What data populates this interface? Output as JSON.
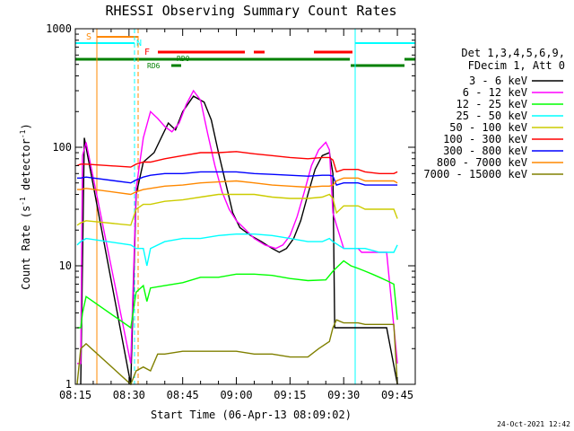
{
  "chart_data": {
    "type": "line",
    "title": "RHESSI Observing Summary Count Rates",
    "xlabel": "Start Time (06-Apr-13 08:09:02)",
    "ylabel_main": "Count Rate (s",
    "ylabel_sup1": "-1",
    "ylabel_mid": " detector",
    "ylabel_sup2": "-1",
    "ylabel_end": ")",
    "ylog": true,
    "ylim": [
      1,
      1000
    ],
    "xlim_min": [
      495,
      590
    ],
    "x_ticks": [
      {
        "min": 495,
        "label": "08:15"
      },
      {
        "min": 510,
        "label": "08:30"
      },
      {
        "min": 525,
        "label": "08:45"
      },
      {
        "min": 540,
        "label": "09:00"
      },
      {
        "min": 555,
        "label": "09:15"
      },
      {
        "min": 570,
        "label": "09:30"
      },
      {
        "min": 585,
        "label": "09:45"
      }
    ],
    "y_ticks": [
      {
        "value": 1,
        "label": "1"
      },
      {
        "value": 10,
        "label": "10"
      },
      {
        "value": 100,
        "label": "100"
      },
      {
        "value": 1000,
        "label": "1000"
      }
    ],
    "legend_header": [
      "Det 1,3,4,5,6,9,",
      "FDecim 1, Att 0"
    ],
    "series": [
      {
        "name": "3 - 6 keV",
        "color": "#000000",
        "points": [
          [
            496.5,
            1
          ],
          [
            497.5,
            120
          ],
          [
            510.5,
            1
          ],
          [
            512,
            40
          ],
          [
            514,
            75
          ],
          [
            517,
            90
          ],
          [
            519,
            120
          ],
          [
            521,
            160
          ],
          [
            523,
            140
          ],
          [
            525,
            200
          ],
          [
            528,
            270
          ],
          [
            531,
            240
          ],
          [
            533,
            170
          ],
          [
            535,
            90
          ],
          [
            537,
            50
          ],
          [
            539,
            28
          ],
          [
            541,
            21
          ],
          [
            544,
            18
          ],
          [
            547,
            16
          ],
          [
            550,
            14
          ],
          [
            552,
            13
          ],
          [
            554,
            14
          ],
          [
            556,
            17
          ],
          [
            558,
            24
          ],
          [
            560,
            40
          ],
          [
            562,
            65
          ],
          [
            564,
            85
          ],
          [
            566,
            90
          ],
          [
            567,
            60
          ],
          [
            567.5,
            3
          ],
          [
            574,
            3
          ],
          [
            575,
            3
          ],
          [
            580,
            3
          ],
          [
            582,
            3
          ],
          [
            585,
            1
          ]
        ]
      },
      {
        "name": "6 - 12 keV",
        "color": "#ff00ff",
        "points": [
          [
            495.5,
            1.5
          ],
          [
            496.5,
            1.5
          ],
          [
            497,
            85
          ],
          [
            498,
            110
          ],
          [
            510.5,
            1.5
          ],
          [
            512,
            45
          ],
          [
            514,
            120
          ],
          [
            516,
            200
          ],
          [
            518,
            175
          ],
          [
            520,
            150
          ],
          [
            522,
            135
          ],
          [
            524,
            160
          ],
          [
            526,
            230
          ],
          [
            528,
            300
          ],
          [
            530,
            250
          ],
          [
            532,
            130
          ],
          [
            534,
            70
          ],
          [
            536,
            42
          ],
          [
            538,
            30
          ],
          [
            540,
            24
          ],
          [
            542,
            21
          ],
          [
            545,
            17
          ],
          [
            548,
            15
          ],
          [
            551,
            14
          ],
          [
            553,
            15
          ],
          [
            555,
            18
          ],
          [
            557,
            26
          ],
          [
            559,
            42
          ],
          [
            561,
            70
          ],
          [
            563,
            95
          ],
          [
            565,
            110
          ],
          [
            566,
            95
          ],
          [
            567,
            28
          ],
          [
            568,
            22
          ],
          [
            570,
            14
          ],
          [
            572,
            14
          ],
          [
            574,
            14
          ],
          [
            575,
            13
          ],
          [
            580,
            13
          ],
          [
            582,
            13
          ],
          [
            585,
            1.5
          ]
        ]
      },
      {
        "name": "12 - 25 keV",
        "color": "#00ff00",
        "points": [
          [
            495.5,
            3
          ],
          [
            496.5,
            3
          ],
          [
            497,
            4
          ],
          [
            498,
            5.5
          ],
          [
            510.5,
            3
          ],
          [
            512,
            6
          ],
          [
            514,
            6.8
          ],
          [
            515,
            5
          ],
          [
            516,
            6.5
          ],
          [
            520,
            6.8
          ],
          [
            525,
            7.2
          ],
          [
            530,
            8
          ],
          [
            535,
            8
          ],
          [
            540,
            8.5
          ],
          [
            545,
            8.5
          ],
          [
            550,
            8.3
          ],
          [
            555,
            7.8
          ],
          [
            560,
            7.5
          ],
          [
            565,
            7.6
          ],
          [
            567,
            9
          ],
          [
            570,
            11
          ],
          [
            572,
            10
          ],
          [
            574,
            9.5
          ],
          [
            576,
            9
          ],
          [
            578,
            8.5
          ],
          [
            580,
            8
          ],
          [
            582,
            7.5
          ],
          [
            584,
            7
          ],
          [
            585,
            3.5
          ]
        ]
      },
      {
        "name": "25 - 50 keV",
        "color": "#00ffff",
        "points": [
          [
            495.5,
            15
          ],
          [
            496.5,
            16
          ],
          [
            498,
            17
          ],
          [
            510.5,
            15
          ],
          [
            512,
            14
          ],
          [
            514,
            14
          ],
          [
            515,
            10
          ],
          [
            516,
            14
          ],
          [
            520,
            16
          ],
          [
            525,
            17
          ],
          [
            530,
            17
          ],
          [
            535,
            18
          ],
          [
            540,
            18.5
          ],
          [
            545,
            18.5
          ],
          [
            550,
            18
          ],
          [
            555,
            17
          ],
          [
            560,
            16
          ],
          [
            564,
            16
          ],
          [
            566,
            17
          ],
          [
            567,
            16
          ],
          [
            570,
            14
          ],
          [
            574,
            14
          ],
          [
            576,
            14
          ],
          [
            580,
            13
          ],
          [
            584,
            13
          ],
          [
            585,
            15
          ]
        ]
      },
      {
        "name": "50 - 100 keV",
        "color": "#cccc00",
        "points": [
          [
            495.5,
            22
          ],
          [
            496.5,
            23
          ],
          [
            498,
            24
          ],
          [
            510.5,
            22
          ],
          [
            512,
            30
          ],
          [
            514,
            33
          ],
          [
            516,
            33
          ],
          [
            520,
            35
          ],
          [
            525,
            36
          ],
          [
            530,
            38
          ],
          [
            535,
            40
          ],
          [
            540,
            40
          ],
          [
            545,
            40
          ],
          [
            550,
            38
          ],
          [
            555,
            37
          ],
          [
            560,
            37
          ],
          [
            564,
            38
          ],
          [
            566,
            40
          ],
          [
            567,
            37
          ],
          [
            568,
            28
          ],
          [
            570,
            32
          ],
          [
            574,
            32
          ],
          [
            576,
            30
          ],
          [
            580,
            30
          ],
          [
            584,
            30
          ],
          [
            585,
            25
          ]
        ]
      },
      {
        "name": "100 - 300 keV",
        "color": "#ff0000",
        "points": [
          [
            495.5,
            70
          ],
          [
            496.5,
            72
          ],
          [
            498,
            72
          ],
          [
            510.5,
            68
          ],
          [
            512,
            72
          ],
          [
            514,
            75
          ],
          [
            516,
            75
          ],
          [
            520,
            80
          ],
          [
            525,
            85
          ],
          [
            530,
            90
          ],
          [
            535,
            90
          ],
          [
            540,
            92
          ],
          [
            545,
            88
          ],
          [
            550,
            85
          ],
          [
            555,
            82
          ],
          [
            560,
            80
          ],
          [
            564,
            82
          ],
          [
            566,
            82
          ],
          [
            567,
            78
          ],
          [
            568,
            62
          ],
          [
            570,
            65
          ],
          [
            574,
            65
          ],
          [
            576,
            62
          ],
          [
            580,
            60
          ],
          [
            584,
            60
          ],
          [
            585,
            62
          ]
        ]
      },
      {
        "name": "300 - 800 keV",
        "color": "#0000ff",
        "points": [
          [
            495.5,
            55
          ],
          [
            496.5,
            55
          ],
          [
            498,
            56
          ],
          [
            510.5,
            50
          ],
          [
            512,
            53
          ],
          [
            514,
            56
          ],
          [
            516,
            58
          ],
          [
            520,
            60
          ],
          [
            525,
            60
          ],
          [
            530,
            62
          ],
          [
            535,
            62
          ],
          [
            540,
            62
          ],
          [
            545,
            60
          ],
          [
            550,
            59
          ],
          [
            555,
            58
          ],
          [
            560,
            57
          ],
          [
            564,
            58
          ],
          [
            566,
            58
          ],
          [
            567,
            57
          ],
          [
            568,
            48
          ],
          [
            570,
            50
          ],
          [
            574,
            50
          ],
          [
            576,
            48
          ],
          [
            580,
            48
          ],
          [
            584,
            48
          ],
          [
            585,
            48
          ]
        ]
      },
      {
        "name": "800 - 7000 keV",
        "color": "#ff8800",
        "points": [
          [
            495.5,
            44
          ],
          [
            496.5,
            44
          ],
          [
            498,
            45
          ],
          [
            510.5,
            40
          ],
          [
            512,
            42
          ],
          [
            514,
            44
          ],
          [
            516,
            45
          ],
          [
            520,
            47
          ],
          [
            525,
            48
          ],
          [
            530,
            50
          ],
          [
            535,
            51
          ],
          [
            540,
            52
          ],
          [
            545,
            50
          ],
          [
            550,
            48
          ],
          [
            555,
            47
          ],
          [
            560,
            46
          ],
          [
            564,
            47
          ],
          [
            566,
            47
          ],
          [
            567,
            48
          ],
          [
            568,
            52
          ],
          [
            570,
            55
          ],
          [
            574,
            55
          ],
          [
            576,
            52
          ],
          [
            580,
            52
          ],
          [
            584,
            52
          ],
          [
            585,
            50
          ]
        ]
      },
      {
        "name": "7000 - 15000 keV",
        "color": "#808000",
        "points": [
          [
            495.5,
            1
          ],
          [
            496.5,
            2
          ],
          [
            498,
            2.2
          ],
          [
            510.5,
            1
          ],
          [
            512,
            1.3
          ],
          [
            514,
            1.4
          ],
          [
            516,
            1.3
          ],
          [
            518,
            1.8
          ],
          [
            520,
            1.8
          ],
          [
            525,
            1.9
          ],
          [
            530,
            1.9
          ],
          [
            535,
            1.9
          ],
          [
            540,
            1.9
          ],
          [
            545,
            1.8
          ],
          [
            550,
            1.8
          ],
          [
            555,
            1.7
          ],
          [
            560,
            1.7
          ],
          [
            563,
            2
          ],
          [
            566,
            2.3
          ],
          [
            567,
            3
          ],
          [
            568,
            3.5
          ],
          [
            570,
            3.3
          ],
          [
            574,
            3.3
          ],
          [
            576,
            3.2
          ],
          [
            580,
            3.2
          ],
          [
            584,
            3.2
          ],
          [
            585,
            1
          ]
        ]
      }
    ],
    "flag_labels": {
      "S": "S",
      "N": "N",
      "F": "F",
      "RD0": "RD0",
      "RD6": "RD6"
    }
  },
  "timestamp": "24-Oct-2021 12:42"
}
